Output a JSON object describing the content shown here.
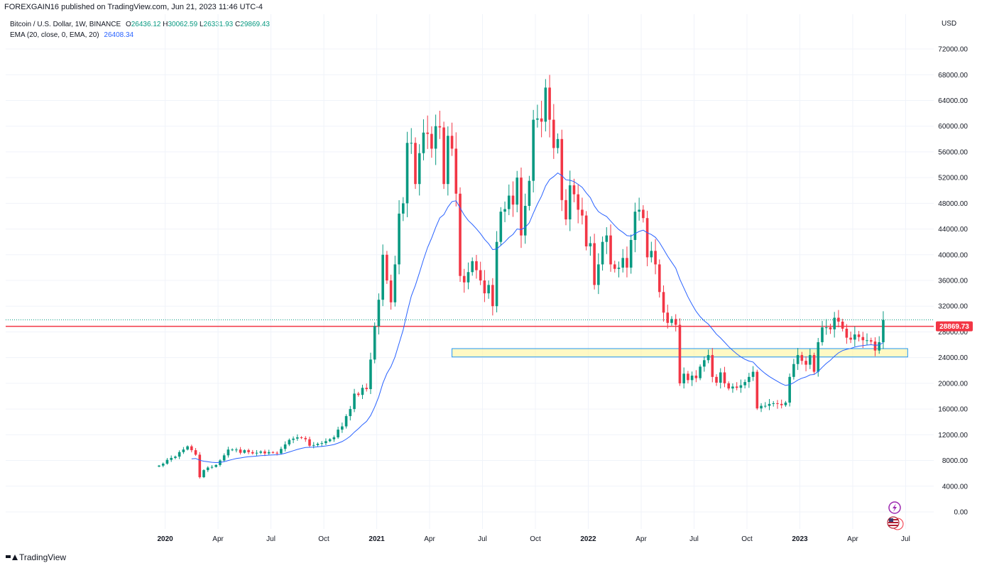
{
  "header": {
    "publisher_text": "FOREXGAIN16 published on TradingView.com, Jun 21, 2023 11:46 UTC-4"
  },
  "legend": {
    "symbol": "Bitcoin / U.S. Dollar, 1W, BINANCE",
    "open_label": "O",
    "open": "26436.12",
    "high_label": "H",
    "high": "30062.59",
    "low_label": "L",
    "low": "26331.93",
    "close_label": "C",
    "close": "29869.43",
    "ema_label": "EMA (20, close, 0, EMA, 20)",
    "ema_value": "26408.34"
  },
  "currency": "USD",
  "price_badge": "28869.73",
  "brand": "TradingView",
  "icons": {
    "lightning": "lightning-icon",
    "flag": "us-flag-icon"
  },
  "colors": {
    "up": "#089981",
    "down": "#f23645",
    "ema": "#2962ff",
    "level": "#f23645",
    "zone_fill": "#fff59d",
    "zone_border": "#2196f3"
  },
  "chart_data": {
    "type": "candlestick",
    "timeframe": "1W",
    "ylim": [
      0,
      76000
    ],
    "y_ticks": [
      "0.00",
      "4000.00",
      "8000.00",
      "12000.00",
      "16000.00",
      "20000.00",
      "24000.00",
      "28000.00",
      "32000.00",
      "36000.00",
      "40000.00",
      "44000.00",
      "48000.00",
      "52000.00",
      "56000.00",
      "60000.00",
      "64000.00",
      "68000.00",
      "72000.00"
    ],
    "x_ticks": [
      {
        "label": "2020",
        "i": 1.5,
        "bold": true
      },
      {
        "label": "Apr",
        "i": 14.5
      },
      {
        "label": "Jul",
        "i": 27.5
      },
      {
        "label": "Oct",
        "i": 40.5
      },
      {
        "label": "2021",
        "i": 53.5,
        "bold": true
      },
      {
        "label": "Apr",
        "i": 66.5
      },
      {
        "label": "Jul",
        "i": 79.5
      },
      {
        "label": "Oct",
        "i": 92.5
      },
      {
        "label": "2022",
        "i": 105.5,
        "bold": true
      },
      {
        "label": "Apr",
        "i": 118.5
      },
      {
        "label": "Jul",
        "i": 131.5
      },
      {
        "label": "Oct",
        "i": 144.5
      },
      {
        "label": "2023",
        "i": 157.5,
        "bold": true
      },
      {
        "label": "Apr",
        "i": 170.5
      },
      {
        "label": "Jul",
        "i": 183.5
      }
    ],
    "horizontal_line": 28869.73,
    "zone": {
      "from_index": 72,
      "to_index": 184,
      "low": 24100,
      "high": 25400
    },
    "closes": [
      7200,
      7500,
      8100,
      8400,
      8600,
      9300,
      9700,
      10200,
      9600,
      8900,
      5400,
      6500,
      6900,
      7000,
      7300,
      8000,
      8800,
      9700,
      9700,
      9700,
      9200,
      9600,
      9300,
      9100,
      9200,
      9400,
      9100,
      9300,
      9200,
      9100,
      9800,
      10500,
      11200,
      11400,
      11600,
      11500,
      11300,
      10300,
      10400,
      10600,
      10700,
      11000,
      11300,
      11600,
      12800,
      13300,
      14900,
      16000,
      18400,
      18200,
      19300,
      19100,
      23700,
      28900,
      33000,
      40000,
      36000,
      32600,
      38500,
      46400,
      48000,
      57400,
      57400,
      51000,
      55800,
      59000,
      58800,
      56500,
      60000,
      59800,
      51000,
      58500,
      56500,
      49500,
      36700,
      35700,
      37300,
      39000,
      37600,
      36000,
      34000,
      35300,
      32000,
      42000,
      46700,
      47100,
      49200,
      47800,
      52000,
      43000,
      47600,
      51500,
      61000,
      61200,
      60700,
      66000,
      61000,
      56600,
      58000,
      48500,
      45500,
      50800,
      49400,
      47000,
      46100,
      41300,
      41800,
      35300,
      38500,
      42000,
      43000,
      38500,
      37800,
      38000,
      39500,
      38000,
      42300,
      46700,
      47000,
      45700,
      39600,
      40600,
      38500,
      34200,
      31000,
      29400,
      30000,
      29100,
      20000,
      21500,
      20500,
      21200,
      20800,
      22600,
      23600,
      24400,
      21000,
      20100,
      21700,
      20000,
      19200,
      19500,
      19300,
      19700,
      20200,
      21000,
      21800,
      16100,
      16500,
      16500,
      16800,
      16900,
      16800,
      16600,
      17000,
      21000,
      23000,
      24400,
      23500,
      22900,
      24400,
      21800,
      26400,
      28700,
      28700,
      28400,
      30200,
      29600,
      28500,
      27100,
      26800,
      27600,
      27200,
      26700,
      26700,
      26500,
      25100,
      26400,
      29869
    ]
  }
}
